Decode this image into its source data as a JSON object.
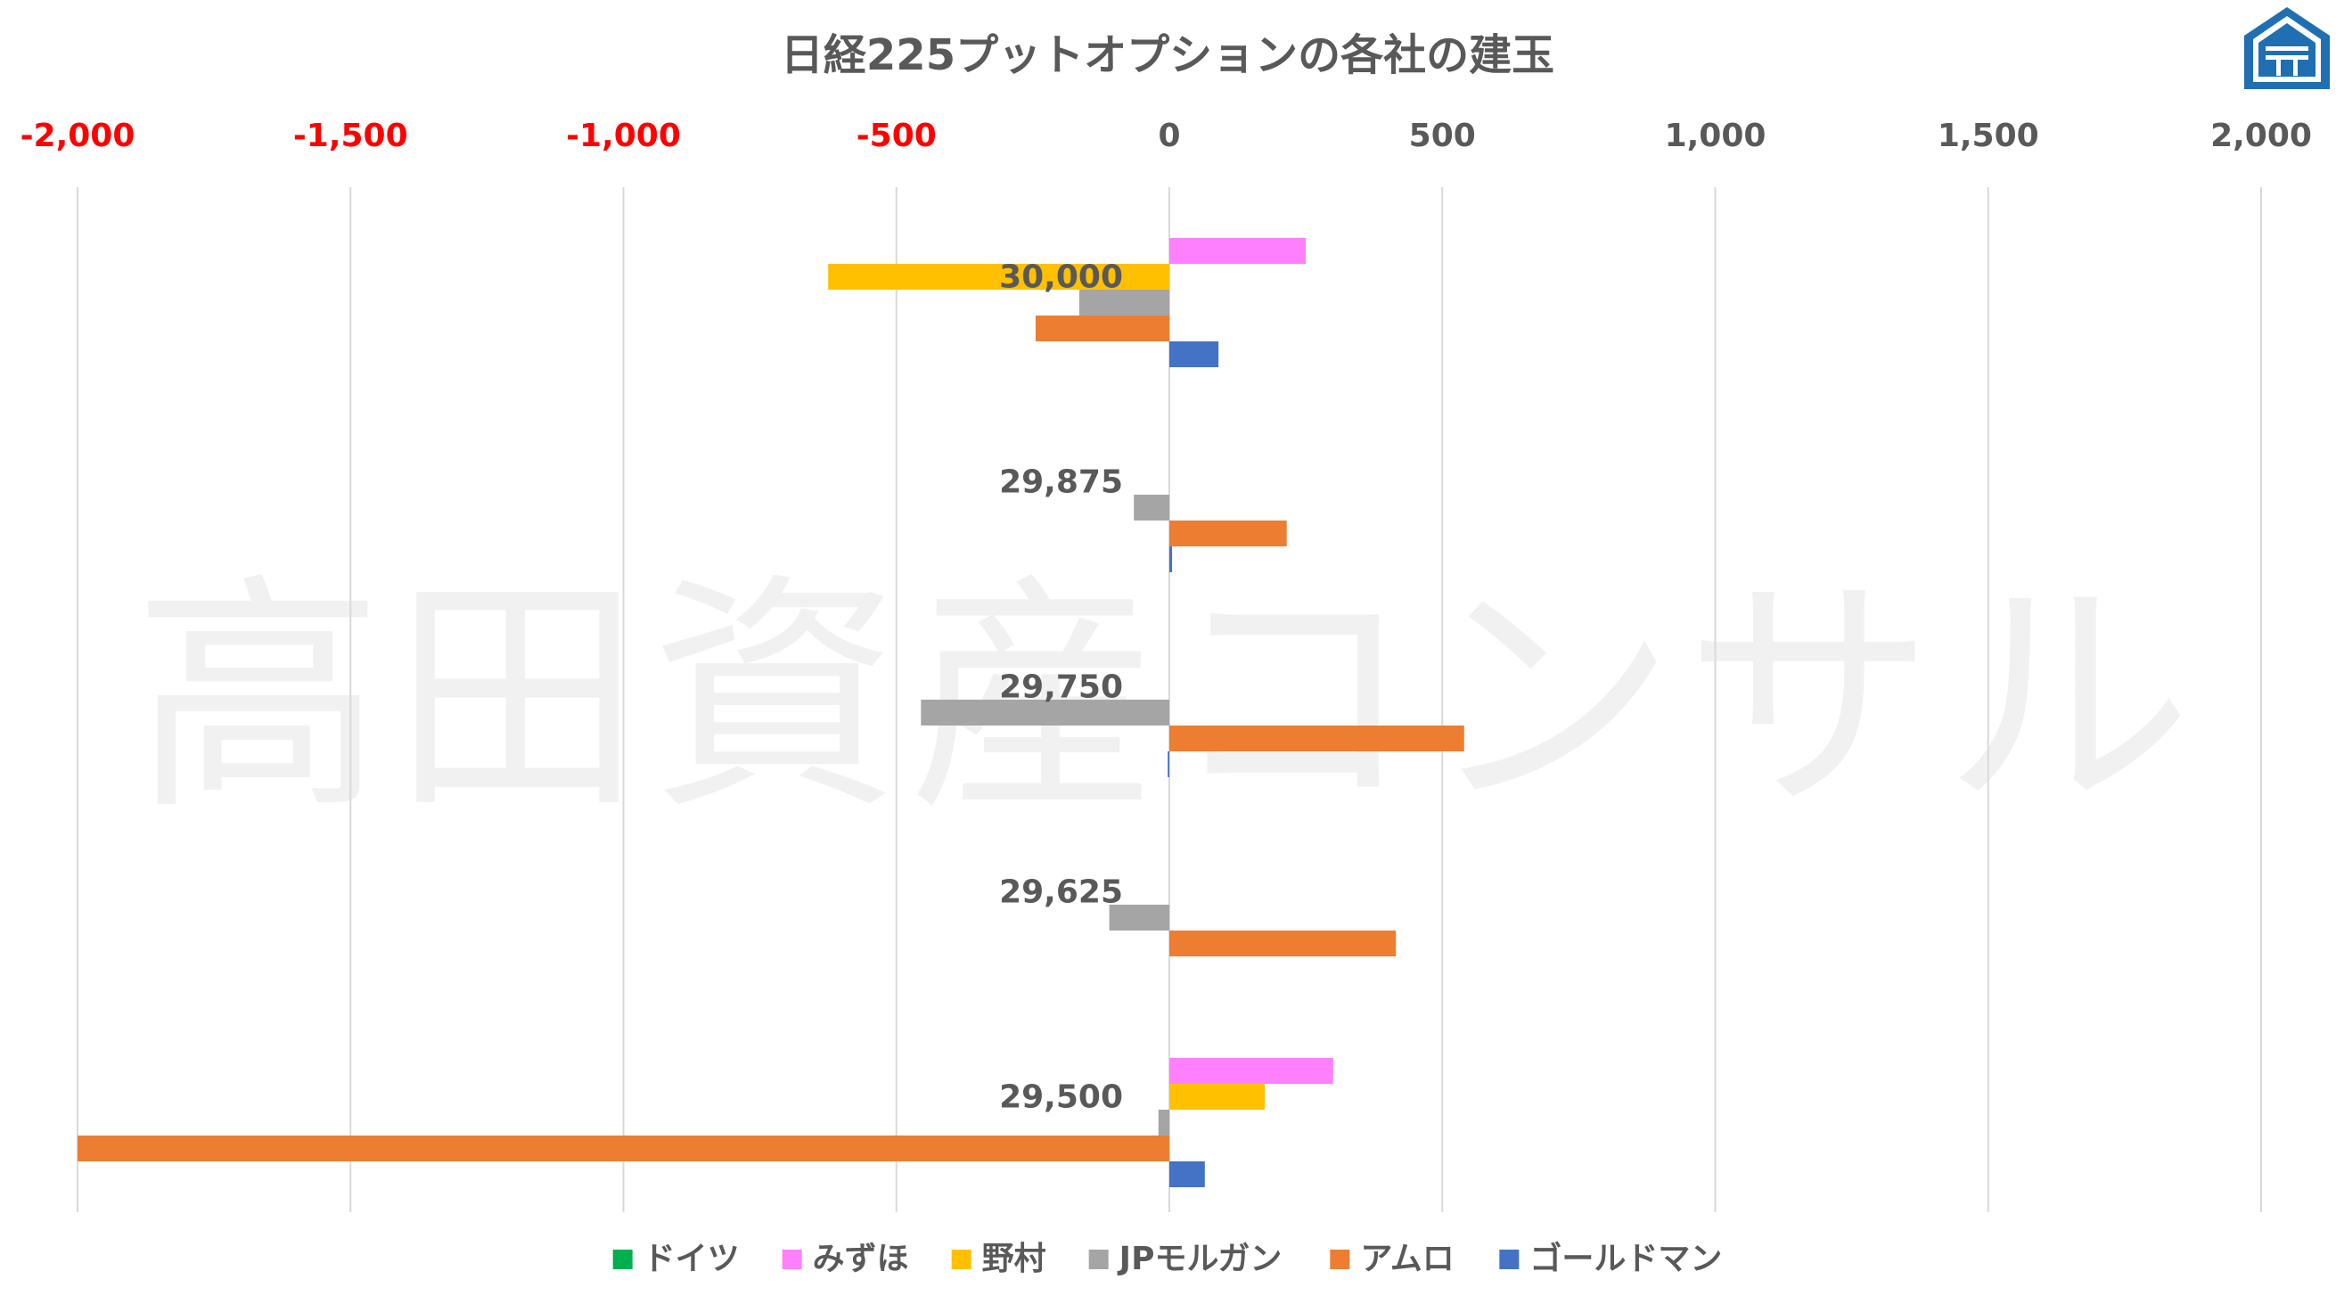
{
  "chart_data": {
    "type": "bar",
    "orientation": "horizontal",
    "title": "日経225プットオプションの各社の建玉",
    "xlim": [
      -2000,
      2000
    ],
    "x_ticks": [
      -2000,
      -1500,
      -1000,
      -500,
      0,
      500,
      1000,
      1500,
      2000
    ],
    "x_tick_labels": [
      "-2,000",
      "-1,500",
      "-1,000",
      "-500",
      "0",
      "500",
      "1,000",
      "1,500",
      "2,000"
    ],
    "negative_tick_color": "#ff0000",
    "positive_tick_color": "#595959",
    "axis_position": "top",
    "grid": "vertical",
    "legend_position": "bottom",
    "categories": [
      "30,000",
      "29,875",
      "29,750",
      "29,625",
      "29,500"
    ],
    "series": [
      {
        "name": "ドイツ",
        "color": "#00b050",
        "values": [
          0,
          0,
          0,
          0,
          0
        ]
      },
      {
        "name": "みずほ",
        "color": "#ff80ff",
        "values": [
          250,
          0,
          0,
          0,
          300
        ]
      },
      {
        "name": "野村",
        "color": "#ffc000",
        "values": [
          -625,
          0,
          0,
          0,
          175
        ]
      },
      {
        "name": "JPモルガン",
        "color": "#a5a5a5",
        "values": [
          -165,
          -65,
          -455,
          -110,
          -20
        ]
      },
      {
        "name": "アムロ",
        "color": "#ed7d31",
        "values": [
          -245,
          215,
          540,
          415,
          -2000
        ]
      },
      {
        "name": "ゴールドマン",
        "color": "#4472c4",
        "values": [
          90,
          5,
          -3,
          0,
          65
        ]
      }
    ]
  },
  "watermark": {
    "text": "高田資産コンサル"
  },
  "logo": {
    "icon": "house-logo-icon",
    "color": "#1f6fb2"
  }
}
